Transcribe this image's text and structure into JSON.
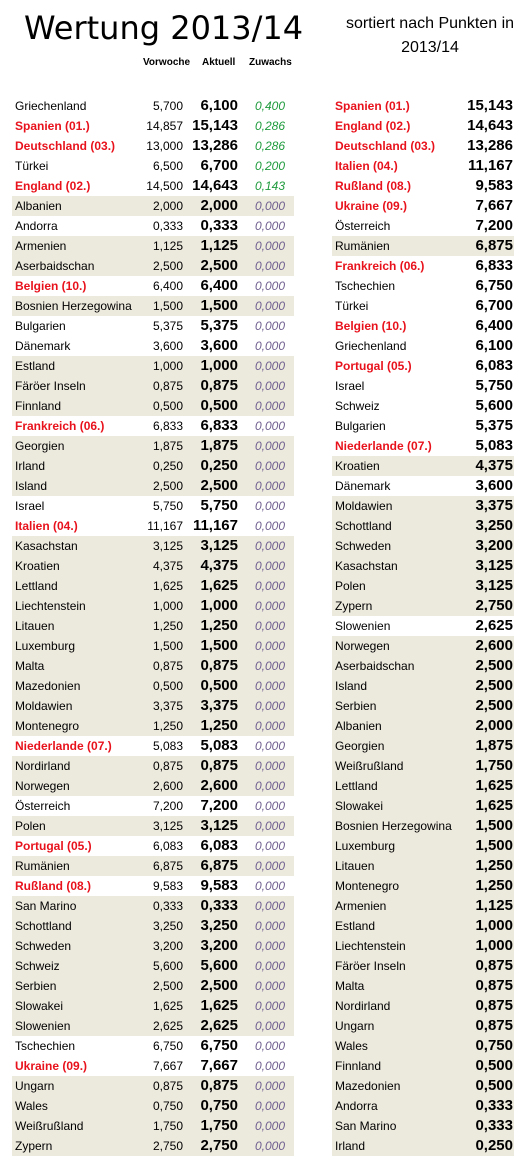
{
  "title": "Wertung 2013/14",
  "subtitle_line1": "sortiert nach Punkten in",
  "subtitle_line2": "2013/14",
  "headers": {
    "prev": "Vorwoche",
    "curr": "Aktuell",
    "gain": "Zuwachs"
  },
  "colors": {
    "highlight": "#e8121c",
    "positive": "#1e9a3c",
    "zero": "#6f5f8f",
    "shade": "#ece9dd"
  },
  "left_rows": [
    {
      "name": "Griechenland",
      "prev": "5,700",
      "curr": "6,100",
      "gain": "0,400",
      "red": false,
      "shade": false,
      "pos": true
    },
    {
      "name": "Spanien (01.)",
      "prev": "14,857",
      "curr": "15,143",
      "gain": "0,286",
      "red": true,
      "shade": false,
      "pos": true
    },
    {
      "name": "Deutschland (03.)",
      "prev": "13,000",
      "curr": "13,286",
      "gain": "0,286",
      "red": true,
      "shade": false,
      "pos": true
    },
    {
      "name": "Türkei",
      "prev": "6,500",
      "curr": "6,700",
      "gain": "0,200",
      "red": false,
      "shade": false,
      "pos": true
    },
    {
      "name": "England (02.)",
      "prev": "14,500",
      "curr": "14,643",
      "gain": "0,143",
      "red": true,
      "shade": false,
      "pos": true
    },
    {
      "name": "Albanien",
      "prev": "2,000",
      "curr": "2,000",
      "gain": "0,000",
      "red": false,
      "shade": true,
      "pos": false
    },
    {
      "name": "Andorra",
      "prev": "0,333",
      "curr": "0,333",
      "gain": "0,000",
      "red": false,
      "shade": false,
      "pos": false
    },
    {
      "name": "Armenien",
      "prev": "1,125",
      "curr": "1,125",
      "gain": "0,000",
      "red": false,
      "shade": true,
      "pos": false
    },
    {
      "name": "Aserbaidschan",
      "prev": "2,500",
      "curr": "2,500",
      "gain": "0,000",
      "red": false,
      "shade": true,
      "pos": false
    },
    {
      "name": "Belgien (10.)",
      "prev": "6,400",
      "curr": "6,400",
      "gain": "0,000",
      "red": true,
      "shade": false,
      "pos": false
    },
    {
      "name": "Bosnien Herzegowina",
      "prev": "1,500",
      "curr": "1,500",
      "gain": "0,000",
      "red": false,
      "shade": true,
      "pos": false
    },
    {
      "name": "Bulgarien",
      "prev": "5,375",
      "curr": "5,375",
      "gain": "0,000",
      "red": false,
      "shade": false,
      "pos": false
    },
    {
      "name": "Dänemark",
      "prev": "3,600",
      "curr": "3,600",
      "gain": "0,000",
      "red": false,
      "shade": false,
      "pos": false
    },
    {
      "name": "Estland",
      "prev": "1,000",
      "curr": "1,000",
      "gain": "0,000",
      "red": false,
      "shade": true,
      "pos": false
    },
    {
      "name": "Färöer Inseln",
      "prev": "0,875",
      "curr": "0,875",
      "gain": "0,000",
      "red": false,
      "shade": true,
      "pos": false
    },
    {
      "name": "Finnland",
      "prev": "0,500",
      "curr": "0,500",
      "gain": "0,000",
      "red": false,
      "shade": true,
      "pos": false
    },
    {
      "name": "Frankreich (06.)",
      "prev": "6,833",
      "curr": "6,833",
      "gain": "0,000",
      "red": true,
      "shade": false,
      "pos": false
    },
    {
      "name": "Georgien",
      "prev": "1,875",
      "curr": "1,875",
      "gain": "0,000",
      "red": false,
      "shade": true,
      "pos": false
    },
    {
      "name": "Irland",
      "prev": "0,250",
      "curr": "0,250",
      "gain": "0,000",
      "red": false,
      "shade": true,
      "pos": false
    },
    {
      "name": "Island",
      "prev": "2,500",
      "curr": "2,500",
      "gain": "0,000",
      "red": false,
      "shade": true,
      "pos": false
    },
    {
      "name": "Israel",
      "prev": "5,750",
      "curr": "5,750",
      "gain": "0,000",
      "red": false,
      "shade": false,
      "pos": false
    },
    {
      "name": "Italien (04.)",
      "prev": "11,167",
      "curr": "11,167",
      "gain": "0,000",
      "red": true,
      "shade": false,
      "pos": false
    },
    {
      "name": "Kasachstan",
      "prev": "3,125",
      "curr": "3,125",
      "gain": "0,000",
      "red": false,
      "shade": true,
      "pos": false
    },
    {
      "name": "Kroatien",
      "prev": "4,375",
      "curr": "4,375",
      "gain": "0,000",
      "red": false,
      "shade": true,
      "pos": false
    },
    {
      "name": "Lettland",
      "prev": "1,625",
      "curr": "1,625",
      "gain": "0,000",
      "red": false,
      "shade": true,
      "pos": false
    },
    {
      "name": "Liechtenstein",
      "prev": "1,000",
      "curr": "1,000",
      "gain": "0,000",
      "red": false,
      "shade": true,
      "pos": false
    },
    {
      "name": "Litauen",
      "prev": "1,250",
      "curr": "1,250",
      "gain": "0,000",
      "red": false,
      "shade": true,
      "pos": false
    },
    {
      "name": "Luxemburg",
      "prev": "1,500",
      "curr": "1,500",
      "gain": "0,000",
      "red": false,
      "shade": true,
      "pos": false
    },
    {
      "name": "Malta",
      "prev": "0,875",
      "curr": "0,875",
      "gain": "0,000",
      "red": false,
      "shade": true,
      "pos": false
    },
    {
      "name": "Mazedonien",
      "prev": "0,500",
      "curr": "0,500",
      "gain": "0,000",
      "red": false,
      "shade": true,
      "pos": false
    },
    {
      "name": "Moldawien",
      "prev": "3,375",
      "curr": "3,375",
      "gain": "0,000",
      "red": false,
      "shade": true,
      "pos": false
    },
    {
      "name": "Montenegro",
      "prev": "1,250",
      "curr": "1,250",
      "gain": "0,000",
      "red": false,
      "shade": true,
      "pos": false
    },
    {
      "name": "Niederlande (07.)",
      "prev": "5,083",
      "curr": "5,083",
      "gain": "0,000",
      "red": true,
      "shade": false,
      "pos": false
    },
    {
      "name": "Nordirland",
      "prev": "0,875",
      "curr": "0,875",
      "gain": "0,000",
      "red": false,
      "shade": true,
      "pos": false
    },
    {
      "name": "Norwegen",
      "prev": "2,600",
      "curr": "2,600",
      "gain": "0,000",
      "red": false,
      "shade": true,
      "pos": false
    },
    {
      "name": "Österreich",
      "prev": "7,200",
      "curr": "7,200",
      "gain": "0,000",
      "red": false,
      "shade": false,
      "pos": false
    },
    {
      "name": "Polen",
      "prev": "3,125",
      "curr": "3,125",
      "gain": "0,000",
      "red": false,
      "shade": true,
      "pos": false
    },
    {
      "name": "Portugal (05.)",
      "prev": "6,083",
      "curr": "6,083",
      "gain": "0,000",
      "red": true,
      "shade": false,
      "pos": false
    },
    {
      "name": "Rumänien",
      "prev": "6,875",
      "curr": "6,875",
      "gain": "0,000",
      "red": false,
      "shade": true,
      "pos": false
    },
    {
      "name": "Rußland (08.)",
      "prev": "9,583",
      "curr": "9,583",
      "gain": "0,000",
      "red": true,
      "shade": false,
      "pos": false
    },
    {
      "name": "San Marino",
      "prev": "0,333",
      "curr": "0,333",
      "gain": "0,000",
      "red": false,
      "shade": true,
      "pos": false
    },
    {
      "name": "Schottland",
      "prev": "3,250",
      "curr": "3,250",
      "gain": "0,000",
      "red": false,
      "shade": true,
      "pos": false
    },
    {
      "name": "Schweden",
      "prev": "3,200",
      "curr": "3,200",
      "gain": "0,000",
      "red": false,
      "shade": true,
      "pos": false
    },
    {
      "name": "Schweiz",
      "prev": "5,600",
      "curr": "5,600",
      "gain": "0,000",
      "red": false,
      "shade": true,
      "pos": false
    },
    {
      "name": "Serbien",
      "prev": "2,500",
      "curr": "2,500",
      "gain": "0,000",
      "red": false,
      "shade": true,
      "pos": false
    },
    {
      "name": "Slowakei",
      "prev": "1,625",
      "curr": "1,625",
      "gain": "0,000",
      "red": false,
      "shade": true,
      "pos": false
    },
    {
      "name": "Slowenien",
      "prev": "2,625",
      "curr": "2,625",
      "gain": "0,000",
      "red": false,
      "shade": true,
      "pos": false
    },
    {
      "name": "Tschechien",
      "prev": "6,750",
      "curr": "6,750",
      "gain": "0,000",
      "red": false,
      "shade": false,
      "pos": false
    },
    {
      "name": "Ukraine (09.)",
      "prev": "7,667",
      "curr": "7,667",
      "gain": "0,000",
      "red": true,
      "shade": false,
      "pos": false
    },
    {
      "name": "Ungarn",
      "prev": "0,875",
      "curr": "0,875",
      "gain": "0,000",
      "red": false,
      "shade": true,
      "pos": false
    },
    {
      "name": "Wales",
      "prev": "0,750",
      "curr": "0,750",
      "gain": "0,000",
      "red": false,
      "shade": true,
      "pos": false
    },
    {
      "name": "Weißrußland",
      "prev": "1,750",
      "curr": "1,750",
      "gain": "0,000",
      "red": false,
      "shade": true,
      "pos": false
    },
    {
      "name": "Zypern",
      "prev": "2,750",
      "curr": "2,750",
      "gain": "0,000",
      "red": false,
      "shade": true,
      "pos": false
    }
  ],
  "right_rows": [
    {
      "name": "Spanien (01.)",
      "pts": "15,143",
      "red": true,
      "shade": false
    },
    {
      "name": "England (02.)",
      "pts": "14,643",
      "red": true,
      "shade": false
    },
    {
      "name": "Deutschland (03.)",
      "pts": "13,286",
      "red": true,
      "shade": false
    },
    {
      "name": "Italien (04.)",
      "pts": "11,167",
      "red": true,
      "shade": false
    },
    {
      "name": "Rußland (08.)",
      "pts": "9,583",
      "red": true,
      "shade": false
    },
    {
      "name": "Ukraine (09.)",
      "pts": "7,667",
      "red": true,
      "shade": false
    },
    {
      "name": "Österreich",
      "pts": "7,200",
      "red": false,
      "shade": false
    },
    {
      "name": "Rumänien",
      "pts": "6,875",
      "red": false,
      "shade": true
    },
    {
      "name": "Frankreich (06.)",
      "pts": "6,833",
      "red": true,
      "shade": false
    },
    {
      "name": "Tschechien",
      "pts": "6,750",
      "red": false,
      "shade": false
    },
    {
      "name": "Türkei",
      "pts": "6,700",
      "red": false,
      "shade": false
    },
    {
      "name": "Belgien (10.)",
      "pts": "6,400",
      "red": true,
      "shade": false
    },
    {
      "name": "Griechenland",
      "pts": "6,100",
      "red": false,
      "shade": false
    },
    {
      "name": "Portugal (05.)",
      "pts": "6,083",
      "red": true,
      "shade": false
    },
    {
      "name": "Israel",
      "pts": "5,750",
      "red": false,
      "shade": false
    },
    {
      "name": "Schweiz",
      "pts": "5,600",
      "red": false,
      "shade": false
    },
    {
      "name": "Bulgarien",
      "pts": "5,375",
      "red": false,
      "shade": false
    },
    {
      "name": "Niederlande (07.)",
      "pts": "5,083",
      "red": true,
      "shade": false
    },
    {
      "name": "Kroatien",
      "pts": "4,375",
      "red": false,
      "shade": true
    },
    {
      "name": "Dänemark",
      "pts": "3,600",
      "red": false,
      "shade": false
    },
    {
      "name": "Moldawien",
      "pts": "3,375",
      "red": false,
      "shade": true
    },
    {
      "name": "Schottland",
      "pts": "3,250",
      "red": false,
      "shade": true
    },
    {
      "name": "Schweden",
      "pts": "3,200",
      "red": false,
      "shade": true
    },
    {
      "name": "Kasachstan",
      "pts": "3,125",
      "red": false,
      "shade": true
    },
    {
      "name": "Polen",
      "pts": "3,125",
      "red": false,
      "shade": true
    },
    {
      "name": "Zypern",
      "pts": "2,750",
      "red": false,
      "shade": true
    },
    {
      "name": "Slowenien",
      "pts": "2,625",
      "red": false,
      "shade": false
    },
    {
      "name": "Norwegen",
      "pts": "2,600",
      "red": false,
      "shade": true
    },
    {
      "name": "Aserbaidschan",
      "pts": "2,500",
      "red": false,
      "shade": true
    },
    {
      "name": "Island",
      "pts": "2,500",
      "red": false,
      "shade": true
    },
    {
      "name": "Serbien",
      "pts": "2,500",
      "red": false,
      "shade": true
    },
    {
      "name": "Albanien",
      "pts": "2,000",
      "red": false,
      "shade": true
    },
    {
      "name": "Georgien",
      "pts": "1,875",
      "red": false,
      "shade": true
    },
    {
      "name": "Weißrußland",
      "pts": "1,750",
      "red": false,
      "shade": true
    },
    {
      "name": "Lettland",
      "pts": "1,625",
      "red": false,
      "shade": true
    },
    {
      "name": "Slowakei",
      "pts": "1,625",
      "red": false,
      "shade": true
    },
    {
      "name": "Bosnien Herzegowina",
      "pts": "1,500",
      "red": false,
      "shade": true
    },
    {
      "name": "Luxemburg",
      "pts": "1,500",
      "red": false,
      "shade": true
    },
    {
      "name": "Litauen",
      "pts": "1,250",
      "red": false,
      "shade": true
    },
    {
      "name": "Montenegro",
      "pts": "1,250",
      "red": false,
      "shade": true
    },
    {
      "name": "Armenien",
      "pts": "1,125",
      "red": false,
      "shade": true
    },
    {
      "name": "Estland",
      "pts": "1,000",
      "red": false,
      "shade": true
    },
    {
      "name": "Liechtenstein",
      "pts": "1,000",
      "red": false,
      "shade": true
    },
    {
      "name": "Färöer Inseln",
      "pts": "0,875",
      "red": false,
      "shade": true
    },
    {
      "name": "Malta",
      "pts": "0,875",
      "red": false,
      "shade": true
    },
    {
      "name": "Nordirland",
      "pts": "0,875",
      "red": false,
      "shade": true
    },
    {
      "name": "Ungarn",
      "pts": "0,875",
      "red": false,
      "shade": true
    },
    {
      "name": "Wales",
      "pts": "0,750",
      "red": false,
      "shade": true
    },
    {
      "name": "Finnland",
      "pts": "0,500",
      "red": false,
      "shade": true
    },
    {
      "name": "Mazedonien",
      "pts": "0,500",
      "red": false,
      "shade": true
    },
    {
      "name": "Andorra",
      "pts": "0,333",
      "red": false,
      "shade": true
    },
    {
      "name": "San Marino",
      "pts": "0,333",
      "red": false,
      "shade": true
    },
    {
      "name": "Irland",
      "pts": "0,250",
      "red": false,
      "shade": true
    }
  ]
}
